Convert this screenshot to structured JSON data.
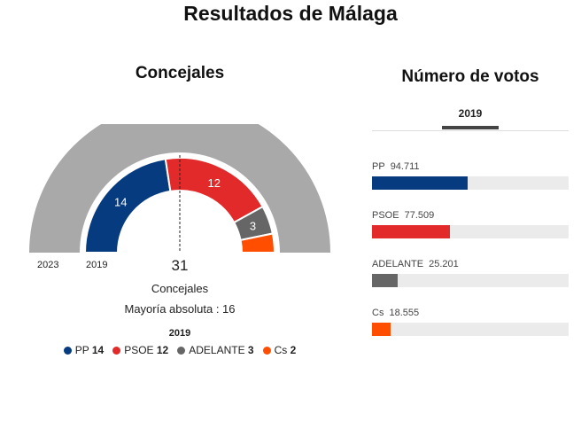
{
  "page": {
    "title": "Resultados de Málaga"
  },
  "concejales": {
    "heading": "Concejales",
    "ring_labels": {
      "outer": "2023",
      "inner": "2019"
    },
    "total": "31",
    "caption": "Concejales",
    "majority": "Mayoría absoluta : 16",
    "legend_year": "2019"
  },
  "votos": {
    "heading": "Número de votos",
    "tab": "2019"
  },
  "chart_data": [
    {
      "type": "pie",
      "title": "Concejales",
      "variant": "hemicycle",
      "rings": [
        {
          "name": "2023",
          "parties": [],
          "values": [],
          "color": "#a9a9a9"
        },
        {
          "name": "2019",
          "parties": [
            "PP",
            "PSOE",
            "ADELANTE",
            "Cs"
          ],
          "values": [
            14,
            12,
            3,
            2
          ]
        }
      ],
      "total": 31,
      "majority": 16,
      "colors": [
        "#063b7f",
        "#e22a2a",
        "#666666",
        "#ff4e00"
      ],
      "legend": [
        "PP",
        "PSOE",
        "ADELANTE",
        "Cs"
      ]
    },
    {
      "type": "bar",
      "orientation": "horizontal",
      "title": "Número de votos",
      "categories": [
        "PP",
        "PSOE",
        "ADELANTE",
        "Cs"
      ],
      "values": [
        94711,
        77509,
        25201,
        18555
      ],
      "value_labels": [
        "94.711",
        "77.509",
        "25.201",
        "18.555"
      ],
      "xlim": [
        0,
        195000
      ],
      "colors": [
        "#063b7f",
        "#e22a2a",
        "#666666",
        "#ff4e00"
      ]
    }
  ]
}
